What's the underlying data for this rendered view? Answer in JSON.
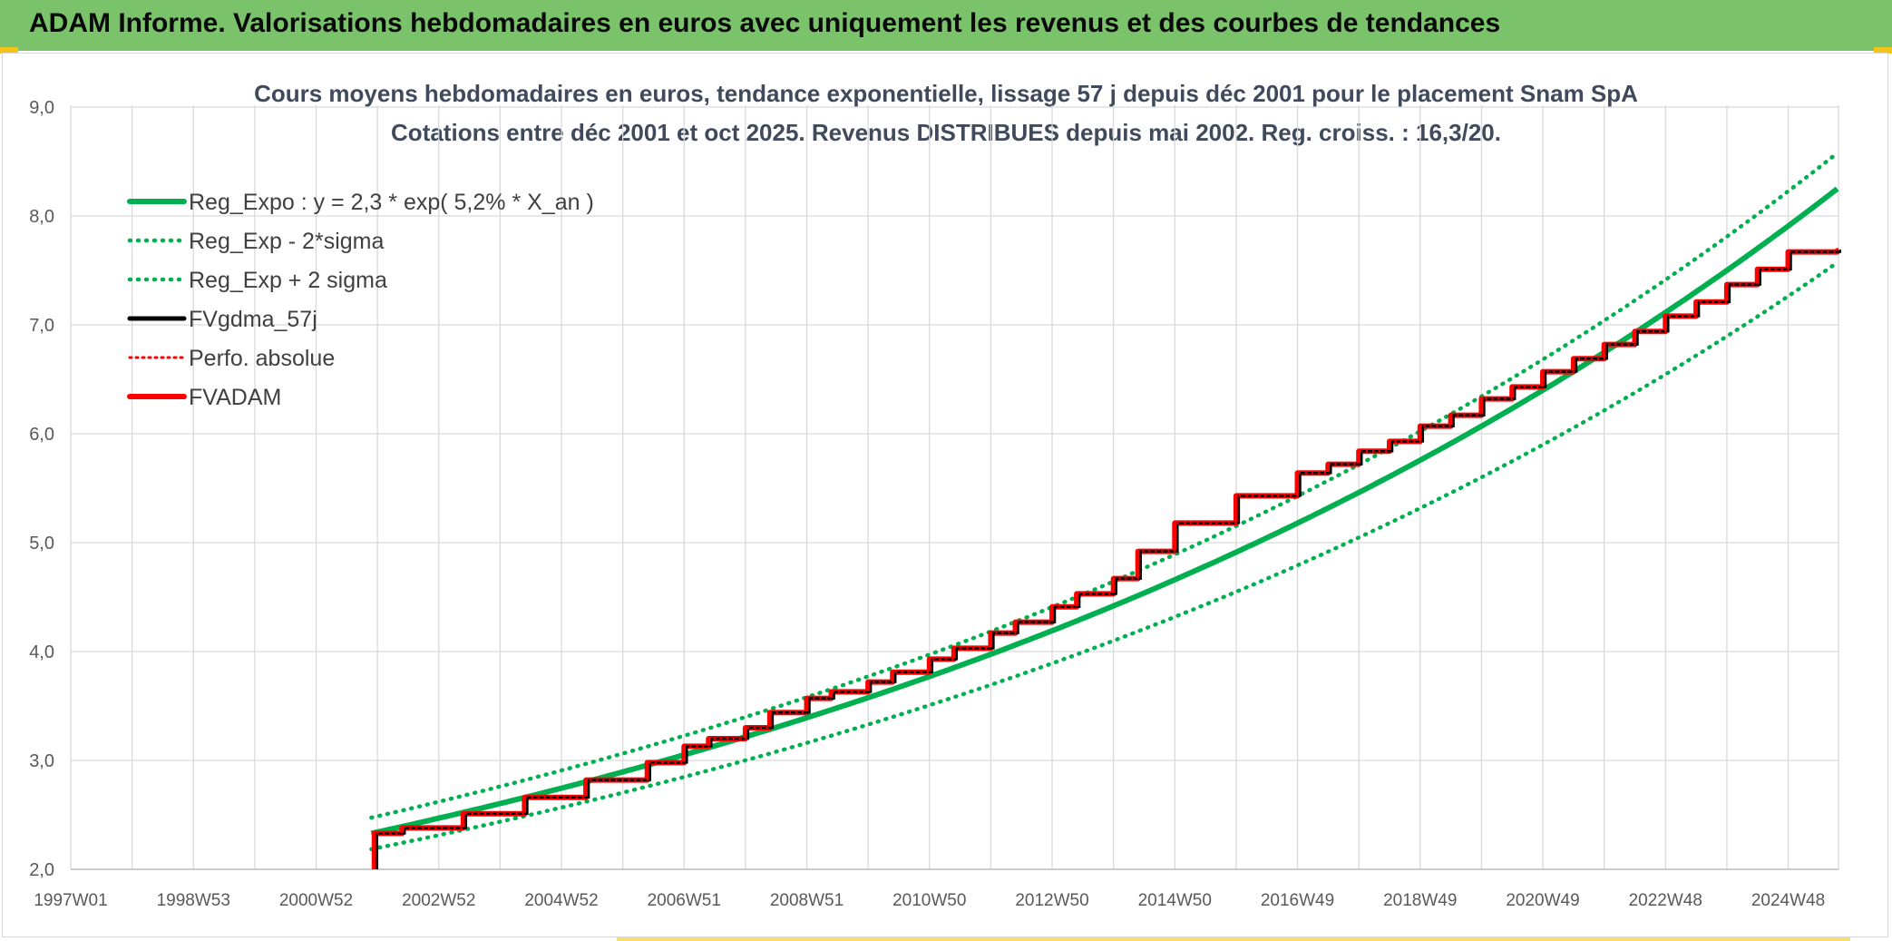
{
  "header": {
    "title": "ADAM Informe. Valorisations hebdomadaires en euros avec uniquement les revenus et des courbes de tendances"
  },
  "colors": {
    "banner": "#7ac36b",
    "reg_expo": "#00b050",
    "fvgdma": "#000000",
    "fvadam": "#ff0000",
    "grid": "#d9d9d9",
    "corner": "#f2c417"
  },
  "chart_data": {
    "type": "line",
    "title": "Cours moyens hebdomadaires en euros, tendance exponentielle, lissage 57 j depuis déc 2001 pour le placement Snam SpA",
    "subtitle": "Cotations entre déc 2001 et oct 2025. Revenus DISTRIBUES depuis mai 2002. Reg. croiss. : 16,3/20.",
    "xlabel": "",
    "ylabel": "",
    "x_range": [
      "1997W01",
      "2025W43"
    ],
    "x_ticks": [
      "1997W01",
      "1998W53",
      "2000W52",
      "2002W52",
      "2004W52",
      "2006W51",
      "2008W51",
      "2010W50",
      "2012W50",
      "2014W50",
      "2016W49",
      "2018W49",
      "2020W49",
      "2022W48",
      "2024W48"
    ],
    "ylim": [
      2.0,
      9.0
    ],
    "y_ticks": [
      "2,0",
      "3,0",
      "4,0",
      "5,0",
      "6,0",
      "7,0",
      "8,0",
      "9,0"
    ],
    "grid": true,
    "legend_position": "top-left",
    "series": [
      {
        "name": "Reg_Expo : y = 2,3 * exp( 5,2% *  X_an )",
        "style": "solid",
        "color": "#00b050",
        "x_years": [
          2001.9,
          2005,
          2010,
          2015,
          2020,
          2025.8
        ],
        "y": [
          2.33,
          2.71,
          3.52,
          4.57,
          5.94,
          8.23
        ]
      },
      {
        "name": "Reg_Exp - 2*sigma",
        "style": "dotted",
        "color": "#00b050",
        "x_years": [
          2001.9,
          2005,
          2010,
          2015,
          2020,
          2025.8
        ],
        "y": [
          2.19,
          2.53,
          3.27,
          4.24,
          5.55,
          7.67
        ]
      },
      {
        "name": "Reg_Exp + 2 sigma",
        "style": "dotted",
        "color": "#00b050",
        "x_years": [
          2001.9,
          2005,
          2010,
          2015,
          2020,
          2025.8
        ],
        "y": [
          2.48,
          2.9,
          3.77,
          4.92,
          6.38,
          8.79
        ]
      },
      {
        "name": "FVgdma_57j",
        "style": "solid",
        "color": "#000000",
        "x_years": [
          2001.9,
          2001.9,
          2002.5,
          2004.5,
          2006.5,
          2008.5,
          2010.5,
          2012.5,
          2014.5,
          2016.5,
          2018.5,
          2020.5,
          2022.5,
          2024.5,
          2025.8
        ],
        "y": [
          2.0,
          2.33,
          2.38,
          2.66,
          2.95,
          3.3,
          3.74,
          4.22,
          4.92,
          5.43,
          5.82,
          6.32,
          6.83,
          7.34,
          7.68
        ]
      },
      {
        "name": "Perfo. absolue",
        "style": "dotted",
        "color": "#ff0000",
        "x_years": [
          2001.9,
          2001.9,
          2002.5,
          2004.5,
          2006.5,
          2008.5,
          2010.5,
          2012.5,
          2014.5,
          2016.5,
          2018.5,
          2020.5,
          2022.5,
          2024.5,
          2025.8
        ],
        "y": [
          2.0,
          2.33,
          2.38,
          2.66,
          2.95,
          3.3,
          3.74,
          4.22,
          4.92,
          5.43,
          5.82,
          6.32,
          6.83,
          7.34,
          7.68
        ]
      },
      {
        "name": "FVADAM",
        "style": "solid",
        "color": "#ff0000",
        "x_years": [
          2001.9,
          2001.9,
          2002.5,
          2004.5,
          2006.5,
          2008.5,
          2010.5,
          2012.5,
          2014.5,
          2016.5,
          2018.5,
          2020.5,
          2022.5,
          2024.5,
          2025.8
        ],
        "y": [
          2.0,
          2.33,
          2.38,
          2.66,
          2.95,
          3.3,
          3.74,
          4.22,
          4.92,
          5.43,
          5.82,
          6.32,
          6.83,
          7.34,
          7.68
        ],
        "steps": [
          [
            2001.95,
            2.33
          ],
          [
            2002.4,
            2.38
          ],
          [
            2003.4,
            2.51
          ],
          [
            2004.4,
            2.66
          ],
          [
            2005.4,
            2.82
          ],
          [
            2006.4,
            2.98
          ],
          [
            2007.0,
            3.13
          ],
          [
            2007.4,
            3.2
          ],
          [
            2008.0,
            3.3
          ],
          [
            2008.4,
            3.44
          ],
          [
            2009.0,
            3.57
          ],
          [
            2009.4,
            3.63
          ],
          [
            2010.0,
            3.72
          ],
          [
            2010.4,
            3.81
          ],
          [
            2011.0,
            3.93
          ],
          [
            2011.4,
            4.03
          ],
          [
            2012.0,
            4.17
          ],
          [
            2012.4,
            4.27
          ],
          [
            2013.0,
            4.41
          ],
          [
            2013.4,
            4.53
          ],
          [
            2014.0,
            4.67
          ],
          [
            2014.4,
            4.92
          ],
          [
            2015.0,
            5.18
          ],
          [
            2016.0,
            5.43
          ],
          [
            2017.0,
            5.64
          ],
          [
            2017.5,
            5.72
          ],
          [
            2018.0,
            5.84
          ],
          [
            2018.5,
            5.93
          ],
          [
            2019.0,
            6.07
          ],
          [
            2019.5,
            6.17
          ],
          [
            2020.0,
            6.32
          ],
          [
            2020.5,
            6.43
          ],
          [
            2021.0,
            6.57
          ],
          [
            2021.5,
            6.69
          ],
          [
            2022.0,
            6.82
          ],
          [
            2022.5,
            6.94
          ],
          [
            2023.0,
            7.08
          ],
          [
            2023.5,
            7.21
          ],
          [
            2024.0,
            7.37
          ],
          [
            2024.5,
            7.51
          ],
          [
            2025.0,
            7.67
          ],
          [
            2025.8,
            7.68
          ]
        ]
      }
    ]
  }
}
